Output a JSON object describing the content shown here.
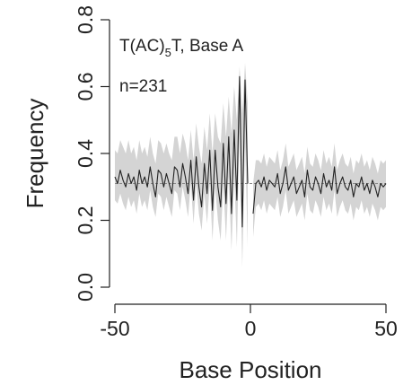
{
  "chart_data": {
    "type": "line",
    "title": "",
    "xlabel": "Base Position",
    "ylabel": "Frequency",
    "xlim": [
      -50,
      50
    ],
    "ylim": [
      0.0,
      0.8
    ],
    "xticks": [
      -50,
      0,
      50
    ],
    "xtick_labels": [
      "-50",
      "0",
      "50"
    ],
    "yticks": [
      0.0,
      0.2,
      0.4,
      0.6,
      0.8
    ],
    "ytick_labels": [
      "0.0",
      "0.2",
      "0.4",
      "0.6",
      "0.8"
    ],
    "annotations": [
      {
        "text": "T(AC)",
        "sub": "5",
        "tail": "T, Base A"
      },
      {
        "text": "n=231"
      }
    ],
    "reference_line": 0.31,
    "band_color": "#d4d4d4",
    "line_color": "#222222",
    "grid": false,
    "legend": "none",
    "series": [
      {
        "x": [
          -50,
          -49,
          -48,
          -47,
          -46,
          -45,
          -44,
          -43,
          -42,
          -41,
          -40,
          -39,
          -38,
          -37,
          -36,
          -35,
          -34,
          -33,
          -32,
          -31,
          -30,
          -29,
          -28,
          -27,
          -26,
          -25,
          -24,
          -23,
          -22,
          -21,
          -20,
          -19,
          -18,
          -17,
          -16,
          -15,
          -14,
          -13,
          -12,
          -11,
          -10,
          -9,
          -8,
          -7,
          -6,
          -5,
          -4,
          -3,
          -2,
          -1
        ],
        "y": [
          0.33,
          0.31,
          0.35,
          0.32,
          0.3,
          0.34,
          0.31,
          0.33,
          0.29,
          0.35,
          0.31,
          0.33,
          0.3,
          0.36,
          0.31,
          0.27,
          0.35,
          0.34,
          0.3,
          0.34,
          0.31,
          0.28,
          0.36,
          0.35,
          0.3,
          0.37,
          0.33,
          0.28,
          0.38,
          0.26,
          0.39,
          0.3,
          0.24,
          0.37,
          0.28,
          0.41,
          0.23,
          0.41,
          0.3,
          0.24,
          0.43,
          0.25,
          0.45,
          0.22,
          0.47,
          0.26,
          0.63,
          0.18,
          0.62,
          0.31
        ],
        "upper": [
          0.41,
          0.4,
          0.44,
          0.42,
          0.4,
          0.44,
          0.4,
          0.42,
          0.38,
          0.44,
          0.4,
          0.42,
          0.39,
          0.45,
          0.4,
          0.37,
          0.44,
          0.43,
          0.4,
          0.43,
          0.4,
          0.38,
          0.45,
          0.45,
          0.4,
          0.46,
          0.43,
          0.38,
          0.47,
          0.38,
          0.49,
          0.42,
          0.37,
          0.48,
          0.41,
          0.52,
          0.4,
          0.52,
          0.45,
          0.43,
          0.55,
          0.45,
          0.57,
          0.46,
          0.6,
          0.5,
          0.66,
          0.52,
          0.67,
          0.55
        ],
        "lower": [
          0.26,
          0.25,
          0.28,
          0.25,
          0.23,
          0.27,
          0.24,
          0.26,
          0.22,
          0.28,
          0.24,
          0.26,
          0.23,
          0.29,
          0.24,
          0.21,
          0.28,
          0.27,
          0.23,
          0.27,
          0.24,
          0.21,
          0.29,
          0.28,
          0.23,
          0.3,
          0.26,
          0.21,
          0.31,
          0.19,
          0.31,
          0.22,
          0.17,
          0.28,
          0.19,
          0.31,
          0.14,
          0.3,
          0.2,
          0.14,
          0.31,
          0.14,
          0.33,
          0.11,
          0.34,
          0.12,
          0.48,
          0.06,
          0.43,
          0.12
        ]
      },
      {
        "x": [
          1,
          2,
          3,
          4,
          5,
          6,
          7,
          8,
          9,
          10,
          11,
          12,
          13,
          14,
          15,
          16,
          17,
          18,
          19,
          20,
          21,
          22,
          23,
          24,
          25,
          26,
          27,
          28,
          29,
          30,
          31,
          32,
          33,
          34,
          35,
          36,
          37,
          38,
          39,
          40,
          41,
          42,
          43,
          44,
          45,
          46,
          47,
          48,
          49,
          50
        ],
        "y": [
          0.22,
          0.31,
          0.32,
          0.3,
          0.33,
          0.29,
          0.32,
          0.31,
          0.3,
          0.34,
          0.28,
          0.31,
          0.36,
          0.29,
          0.31,
          0.33,
          0.28,
          0.3,
          0.32,
          0.27,
          0.35,
          0.3,
          0.29,
          0.33,
          0.31,
          0.28,
          0.34,
          0.3,
          0.32,
          0.29,
          0.36,
          0.28,
          0.31,
          0.33,
          0.3,
          0.29,
          0.32,
          0.27,
          0.31,
          0.3,
          0.33,
          0.29,
          0.31,
          0.28,
          0.32,
          0.3,
          0.27,
          0.31,
          0.3,
          0.31
        ],
        "upper": [
          0.31,
          0.38,
          0.38,
          0.37,
          0.4,
          0.36,
          0.39,
          0.38,
          0.37,
          0.41,
          0.35,
          0.38,
          0.43,
          0.36,
          0.38,
          0.4,
          0.35,
          0.37,
          0.39,
          0.34,
          0.42,
          0.37,
          0.36,
          0.4,
          0.38,
          0.35,
          0.41,
          0.37,
          0.39,
          0.36,
          0.43,
          0.35,
          0.38,
          0.4,
          0.37,
          0.36,
          0.39,
          0.34,
          0.38,
          0.37,
          0.4,
          0.36,
          0.38,
          0.35,
          0.39,
          0.37,
          0.34,
          0.38,
          0.37,
          0.38
        ],
        "lower": [
          0.15,
          0.24,
          0.25,
          0.23,
          0.26,
          0.22,
          0.25,
          0.24,
          0.23,
          0.27,
          0.21,
          0.24,
          0.29,
          0.22,
          0.24,
          0.26,
          0.21,
          0.23,
          0.25,
          0.2,
          0.28,
          0.23,
          0.22,
          0.26,
          0.24,
          0.21,
          0.27,
          0.23,
          0.25,
          0.22,
          0.29,
          0.21,
          0.24,
          0.26,
          0.23,
          0.22,
          0.25,
          0.2,
          0.24,
          0.23,
          0.26,
          0.22,
          0.24,
          0.21,
          0.25,
          0.23,
          0.2,
          0.24,
          0.23,
          0.24
        ]
      }
    ]
  }
}
